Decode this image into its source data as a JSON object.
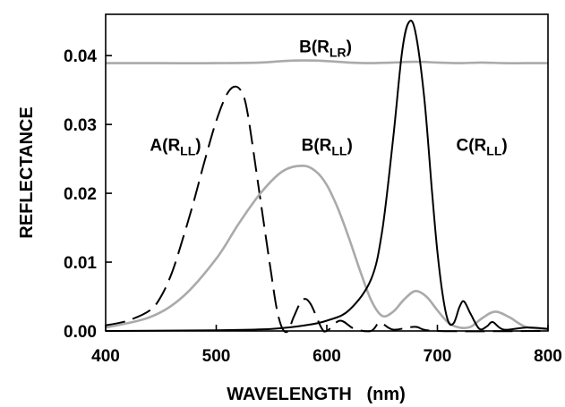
{
  "chart_data": {
    "type": "line",
    "xlabel": "WAVELENGTH   (nm)",
    "ylabel": "REFLECTANCE",
    "xlim": [
      400,
      800
    ],
    "ylim": [
      0,
      0.046
    ],
    "x_ticks": [
      "400",
      "500",
      "600",
      "700",
      "800"
    ],
    "y_ticks": [
      "0.00",
      "0.01",
      "0.02",
      "0.03",
      "0.04"
    ],
    "grid": false,
    "series": [
      {
        "name": "B(RLR)",
        "color": "#aaaaaa",
        "dash": "solid",
        "points": [
          [
            400,
            0.0389
          ],
          [
            450,
            0.0389
          ],
          [
            500,
            0.0389
          ],
          [
            540,
            0.039
          ],
          [
            560,
            0.0392
          ],
          [
            580,
            0.0393
          ],
          [
            600,
            0.0392
          ],
          [
            620,
            0.039
          ],
          [
            640,
            0.0389
          ],
          [
            660,
            0.039
          ],
          [
            680,
            0.0391
          ],
          [
            700,
            0.039
          ],
          [
            720,
            0.0389
          ],
          [
            740,
            0.039
          ],
          [
            760,
            0.0389
          ],
          [
            780,
            0.0389
          ],
          [
            800,
            0.0389
          ]
        ]
      },
      {
        "name": "A(RLL)",
        "color": "#000000",
        "dash": "dashed",
        "points": [
          [
            400,
            0.0008
          ],
          [
            420,
            0.0015
          ],
          [
            440,
            0.003
          ],
          [
            450,
            0.005
          ],
          [
            460,
            0.0085
          ],
          [
            470,
            0.0135
          ],
          [
            480,
            0.019
          ],
          [
            490,
            0.025
          ],
          [
            500,
            0.0305
          ],
          [
            510,
            0.0345
          ],
          [
            518,
            0.0355
          ],
          [
            525,
            0.034
          ],
          [
            530,
            0.03
          ],
          [
            540,
            0.019
          ],
          [
            550,
            0.008
          ],
          [
            555,
            0.003
          ],
          [
            560,
            0.0003
          ],
          [
            565,
            0.0
          ],
          [
            570,
            0.002
          ],
          [
            578,
            0.0045
          ],
          [
            585,
            0.004
          ],
          [
            595,
            0.0005
          ],
          [
            600,
            0.0
          ],
          [
            612,
            0.0015
          ],
          [
            625,
            0.0003
          ],
          [
            640,
            0.0
          ],
          [
            648,
            0.0012
          ],
          [
            660,
            0.0002
          ],
          [
            680,
            0.0006
          ],
          [
            700,
            0.0
          ],
          [
            800,
            0.0
          ]
        ]
      },
      {
        "name": "B(RLL)",
        "color": "#aaaaaa",
        "dash": "solid",
        "points": [
          [
            400,
            0.0005
          ],
          [
            440,
            0.002
          ],
          [
            470,
            0.005
          ],
          [
            500,
            0.0105
          ],
          [
            520,
            0.0155
          ],
          [
            540,
            0.02
          ],
          [
            560,
            0.0232
          ],
          [
            578,
            0.024
          ],
          [
            590,
            0.0232
          ],
          [
            600,
            0.0212
          ],
          [
            610,
            0.0178
          ],
          [
            620,
            0.0135
          ],
          [
            630,
            0.0088
          ],
          [
            640,
            0.0045
          ],
          [
            650,
            0.0022
          ],
          [
            660,
            0.0028
          ],
          [
            670,
            0.0046
          ],
          [
            680,
            0.0058
          ],
          [
            690,
            0.005
          ],
          [
            700,
            0.003
          ],
          [
            710,
            0.0012
          ],
          [
            720,
            0.0005
          ],
          [
            730,
            0.0006
          ],
          [
            740,
            0.0018
          ],
          [
            752,
            0.0028
          ],
          [
            765,
            0.002
          ],
          [
            780,
            0.0006
          ],
          [
            800,
            0.0003
          ]
        ]
      },
      {
        "name": "C(RLL)",
        "color": "#000000",
        "dash": "solid",
        "points": [
          [
            400,
            0.0
          ],
          [
            500,
            0.0001
          ],
          [
            550,
            0.0003
          ],
          [
            580,
            0.0008
          ],
          [
            600,
            0.0015
          ],
          [
            620,
            0.003
          ],
          [
            640,
            0.0075
          ],
          [
            650,
            0.0145
          ],
          [
            660,
            0.028
          ],
          [
            668,
            0.0405
          ],
          [
            674,
            0.0448
          ],
          [
            680,
            0.0435
          ],
          [
            688,
            0.034
          ],
          [
            695,
            0.0205
          ],
          [
            700,
            0.0115
          ],
          [
            705,
            0.005
          ],
          [
            710,
            0.0013
          ],
          [
            715,
            0.0012
          ],
          [
            720,
            0.0035
          ],
          [
            724,
            0.0043
          ],
          [
            730,
            0.0025
          ],
          [
            738,
            0.0003
          ],
          [
            745,
            0.0007
          ],
          [
            750,
            0.0013
          ],
          [
            760,
            0.0002
          ],
          [
            780,
            0.0005
          ],
          [
            800,
            0.0003
          ]
        ]
      }
    ],
    "annotations": [
      {
        "text": "B(R",
        "sub": "LR",
        "close": ")",
        "x": 575,
        "y": 0.0405
      },
      {
        "text": "A(R",
        "sub": "LL",
        "close": ")",
        "x": 440,
        "y": 0.0262
      },
      {
        "text": "B(R",
        "sub": "LL",
        "close": ")",
        "x": 577,
        "y": 0.0262
      },
      {
        "text": "C(R",
        "sub": "LL",
        "close": ")",
        "x": 717,
        "y": 0.0262
      }
    ]
  }
}
